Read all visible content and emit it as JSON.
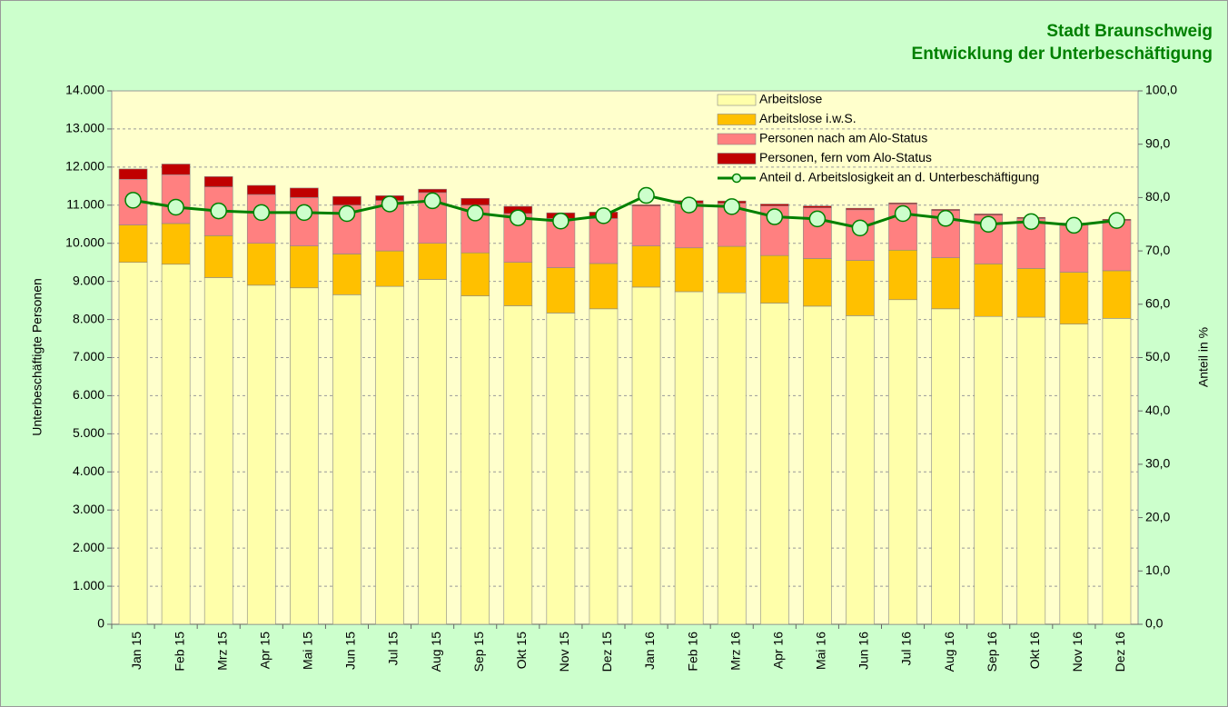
{
  "chart_data": {
    "type": "bar",
    "stacked": true,
    "title": "Stadt Braunschweig",
    "subtitle": "Entwicklung der Unterbeschäftigung",
    "y_label": "Unterbeschäftigte Personen",
    "y2_label": "Anteil in %",
    "categories": [
      "Jan 15",
      "Feb 15",
      "Mrz 15",
      "Apr 15",
      "Mai 15",
      "Jun 15",
      "Jul 15",
      "Aug 15",
      "Sep 15",
      "Okt 15",
      "Nov 15",
      "Dez 15",
      "Jan 16",
      "Feb 16",
      "Mrz 16",
      "Apr 16",
      "Mai 16",
      "Jun 16",
      "Jul 16",
      "Aug 16",
      "Sep 16",
      "Okt 16",
      "Nov 16",
      "Dez 16"
    ],
    "series": [
      {
        "name": "Arbeitslose",
        "color": "#ffffaa",
        "values": [
          9500,
          9450,
          9100,
          8900,
          8830,
          8650,
          8870,
          9050,
          8620,
          8360,
          8170,
          8280,
          8850,
          8730,
          8700,
          8430,
          8350,
          8100,
          8520,
          8280,
          8080,
          8060,
          7880,
          8030
        ]
      },
      {
        "name": "Arbeitslose i.w.S.",
        "color": "#ffc000",
        "values": [
          980,
          1070,
          1100,
          1100,
          1100,
          1070,
          930,
          950,
          1130,
          1140,
          1190,
          1190,
          1080,
          1150,
          1220,
          1250,
          1250,
          1450,
          1300,
          1340,
          1380,
          1280,
          1360,
          1250
        ]
      },
      {
        "name": "Personen nach am Alo-Status",
        "color": "#ff8080",
        "values": [
          1200,
          1280,
          1280,
          1280,
          1270,
          1280,
          1320,
          1330,
          1250,
          1280,
          1290,
          1180,
          1050,
          1170,
          1130,
          1300,
          1330,
          1330,
          1210,
          1240,
          1280,
          1310,
          1260,
          1320
        ]
      },
      {
        "name": "Personen, fern vom Alo-Status",
        "color": "#c00000",
        "values": [
          270,
          280,
          270,
          240,
          250,
          230,
          130,
          90,
          180,
          190,
          150,
          170,
          30,
          70,
          60,
          50,
          50,
          40,
          30,
          30,
          30,
          30,
          30,
          30
        ]
      },
      {
        "name": "Anteil d. Arbeitslosigkeit an d. Unterbeschäftigung",
        "type": "line",
        "axis": "y2",
        "color": "#008000",
        "values": [
          79.5,
          78.2,
          77.5,
          77.2,
          77.2,
          77.0,
          78.8,
          79.4,
          77.1,
          76.2,
          75.6,
          76.6,
          80.4,
          78.6,
          78.3,
          76.4,
          76.0,
          74.3,
          77.0,
          76.1,
          75.0,
          75.5,
          74.8,
          75.7
        ]
      }
    ],
    "ylim": [
      0,
      14000
    ],
    "yticks": [
      0,
      {
        "value": 1000,
        "label": "1.000"
      },
      {
        "value": 2000,
        "label": "2.000"
      },
      {
        "value": 3000,
        "label": "3.000"
      },
      {
        "value": 4000,
        "label": "4.000"
      },
      {
        "value": 5000,
        "label": "5.000"
      },
      {
        "value": 6000,
        "label": "6.000"
      },
      {
        "value": 7000,
        "label": "7.000"
      },
      {
        "value": 8000,
        "label": "8.000"
      },
      {
        "value": 9000,
        "label": "9.000"
      },
      {
        "value": 10000,
        "label": "10.000"
      },
      {
        "value": 11000,
        "label": "11.000"
      },
      {
        "value": 12000,
        "label": "12.000"
      },
      {
        "value": 13000,
        "label": "13.000"
      },
      {
        "value": 14000,
        "label": "14.000"
      }
    ],
    "y2lim": [
      0,
      100
    ],
    "y2ticks": [
      {
        "value": 0,
        "label": "0,0"
      },
      {
        "value": 10,
        "label": "10,0"
      },
      {
        "value": 20,
        "label": "20,0"
      },
      {
        "value": 30,
        "label": "30,0"
      },
      {
        "value": 40,
        "label": "40,0"
      },
      {
        "value": 50,
        "label": "50,0"
      },
      {
        "value": 60,
        "label": "60,0"
      },
      {
        "value": 70,
        "label": "70,0"
      },
      {
        "value": 80,
        "label": "80,0"
      },
      {
        "value": 90,
        "label": "90,0"
      },
      {
        "value": 100,
        "label": "100,0"
      }
    ],
    "grid": true,
    "legend": "top-right"
  }
}
